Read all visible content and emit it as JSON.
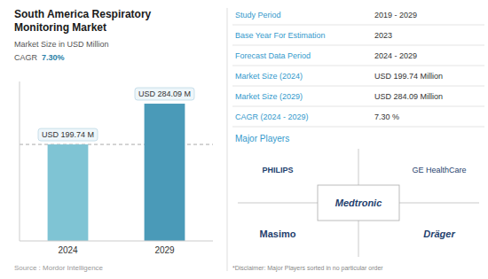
{
  "chart_data": {
    "type": "bar",
    "title": [
      "South America Respiratory",
      "Monitoring Market"
    ],
    "subtitle": "Market Size in USD Million",
    "categories": [
      "2024",
      "2029"
    ],
    "values": [
      199.74,
      284.09
    ],
    "value_labels": [
      "USD 199.74 M",
      "USD 284.09 M"
    ],
    "data_labels": true,
    "colors": [
      "#7fc4d4",
      "#4a9ab8"
    ],
    "ylim": [
      0,
      330
    ],
    "tick_labels": "x",
    "grid": false,
    "annotations": {
      "cagr_label": "CAGR",
      "cagr_value": "7.30%",
      "source": "Source :  Mordor Intelligence",
      "table": [
        {
          "key": "Study Period",
          "value": "2019 - 2029"
        },
        {
          "key": "Base Year For Estimation",
          "value": "2023"
        },
        {
          "key": "Forecast Data Period",
          "value": "2024 - 2029"
        },
        {
          "key": "Market Size (2024)",
          "value": "USD 199.74 Million"
        },
        {
          "key": "Market Size (2029)",
          "value": "USD 284.09 Million"
        },
        {
          "key": "CAGR (2024 - 2029)",
          "value": "7.30 %"
        }
      ],
      "players_label": "Major Players",
      "players": [
        "PHILIPS",
        "GE HealthCare",
        "Medtronic",
        "Masimo",
        "Dräger"
      ],
      "disclaimer": "*Disclaimer: Major Players sorted in no particular order"
    }
  }
}
